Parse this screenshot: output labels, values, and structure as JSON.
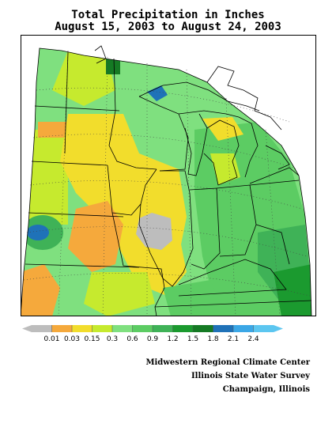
{
  "header": {
    "title_line1": "Total Precipitation in Inches",
    "title_line2": "August 15, 2003 to August 24, 2003"
  },
  "legend": {
    "labels": [
      "0.01",
      "0.03",
      "0.15",
      "0.3",
      "0.6",
      "0.9",
      "1.2",
      "1.5",
      "1.8",
      "2.1",
      "2.4"
    ],
    "colors": [
      "#bdbdbd",
      "#f5a93c",
      "#f2dd2c",
      "#c6ea2e",
      "#7fe07f",
      "#5ccc63",
      "#3fb257",
      "#1b9a2f",
      "#157a24",
      "#1f72b8",
      "#3ba7e6",
      "#5cc6f0"
    ]
  },
  "credits": {
    "line1": "Midwestern Regional Climate Center",
    "line2": "Illinois State Water Survey",
    "line3": "Champaign, Illinois"
  },
  "map": {
    "colors": {
      "gray": "#bdbdbd",
      "orange": "#f5a93c",
      "yellow": "#f2dd2c",
      "lime": "#c6ea2e",
      "lightgreen": "#7fe07f",
      "green": "#5ccc63",
      "midgreen": "#3fb257",
      "darkgreen": "#1b9a2f",
      "forest": "#157a24",
      "blue": "#1f72b8"
    }
  }
}
